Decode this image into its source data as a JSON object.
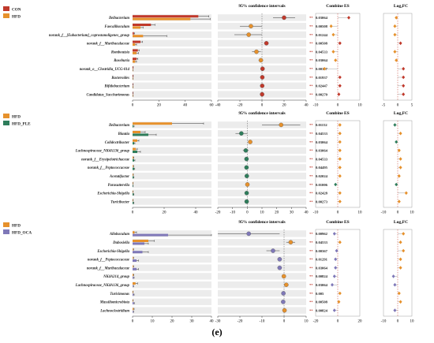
{
  "figure": {
    "caption": "(e)"
  },
  "chart_data": [
    {
      "type": "bar",
      "legend": [
        {
          "name": "CON",
          "color": "#c0392b"
        },
        {
          "name": "HFD",
          "color": "#e6912c"
        }
      ],
      "headers": {
        "ci": "95% confidence intervals",
        "es": "Combine ES",
        "fc": "Log₂FC"
      },
      "categories": [
        "Ileibacterium",
        "Faecalibaculum",
        "norank_f__[Eubacterium]_coprostanoligenes_group",
        "norank_f__Muribaculaceae",
        "Romboutsia",
        "Roseburia",
        "norank_o__Clostridia_UCG-014",
        "Bacteroides",
        "Bifidobacterium",
        "Candidatus_Saccharimonas"
      ],
      "series": [
        {
          "name": "CON",
          "values": [
            50,
            14,
            1,
            6,
            4,
            3,
            0.3,
            0.3,
            0.2,
            0.2
          ],
          "err": [
            8,
            3,
            0.5,
            1.5,
            1,
            1,
            0.2,
            0.2,
            0.1,
            0.1
          ]
        },
        {
          "name": "HFD",
          "values": [
            44,
            6,
            8,
            2,
            3,
            2,
            0.1,
            0.1,
            0.1,
            0.1
          ],
          "err": [
            15,
            2,
            18,
            1,
            1.5,
            1,
            0.1,
            0.1,
            0.1,
            0.1
          ]
        }
      ],
      "bar_xticks": [
        "0",
        "20",
        "40",
        "60"
      ],
      "bar_xlim": [
        0,
        60
      ],
      "ci": {
        "estimate": [
          20,
          -10,
          -12,
          4,
          -5,
          -1,
          0.5,
          0.3,
          0.2,
          0.1
        ],
        "low": [
          10,
          -20,
          -25,
          2,
          -9,
          -3,
          0,
          0,
          0,
          0
        ],
        "high": [
          30,
          0,
          0,
          6,
          -1,
          1,
          1,
          0.6,
          0.4,
          0.2
        ],
        "color": [
          "#c0392b",
          "#e6912c",
          "#e6912c",
          "#c0392b",
          "#e6912c",
          "#e6912c",
          "#c0392b",
          "#c0392b",
          "#c0392b",
          "#c0392b"
        ],
        "xlim": [
          -40,
          40
        ],
        "xticks": [
          "-40",
          "-20",
          "0",
          "20",
          "40"
        ]
      },
      "pvalues": [
        "0.03064",
        "0.00508",
        "0.01244",
        "0.00508",
        "0.04533",
        "0.03064",
        "0.00367",
        "0.01937",
        "0.02447",
        "0.00270"
      ],
      "es": {
        "values": [
          5,
          -3,
          -2,
          1,
          -2,
          -1,
          -6,
          1,
          1,
          0.5
        ],
        "xlim": [
          -10,
          10
        ],
        "xticks": [
          "-10",
          "0",
          "10"
        ]
      },
      "fc": {
        "values": [
          -0.5,
          -1,
          -1,
          1,
          -1,
          -0.5,
          2,
          2,
          2,
          2
        ],
        "xlim": [
          -5,
          5
        ],
        "xticks": [
          "-5",
          "0",
          "5"
        ]
      }
    },
    {
      "type": "bar",
      "legend": [
        {
          "name": "HFD",
          "color": "#e6912c"
        },
        {
          "name": "HFD_PLE",
          "color": "#2e7d5b"
        }
      ],
      "headers": {
        "ci": "95% confidence intervals",
        "es": "Combine ES",
        "fc": "Log₂FC"
      },
      "categories": [
        "Ileibacterium",
        "Blautia",
        "Colidextribacter",
        "Lachnospiraceae_NK4A136_group",
        "norank_f__Erysipelotrichaceae",
        "norank_f__Peptococcaceae",
        "Acetatifactor",
        "Parasutterella",
        "Escherichia-Shigella",
        "Turicibacter"
      ],
      "series": [
        {
          "name": "HFD",
          "values": [
            25,
            5,
            3,
            2,
            0.5,
            0.4,
            0.3,
            0.2,
            0.2,
            0.2
          ],
          "err": [
            20,
            3,
            1,
            1,
            0.3,
            0.3,
            0.2,
            0.1,
            0.1,
            0.1
          ]
        },
        {
          "name": "HFD_PLE",
          "values": [
            0.5,
            10,
            1,
            3,
            1,
            1,
            0.6,
            0.1,
            0.6,
            0.6
          ],
          "err": [
            0.5,
            5,
            0.5,
            2,
            0.5,
            0.4,
            0.3,
            0.1,
            0.3,
            0.3
          ]
        }
      ],
      "bar_xticks": [
        "0",
        "20",
        "40"
      ],
      "bar_xlim": [
        0,
        50
      ],
      "ci": {
        "estimate": [
          23,
          -4,
          2,
          -1,
          -0.5,
          -0.5,
          -0.3,
          0.1,
          -0.4,
          -0.4
        ],
        "low": [
          10,
          -8,
          1,
          -3,
          -1,
          -1,
          -0.6,
          0,
          -0.8,
          -0.8
        ],
        "high": [
          36,
          0,
          3,
          1,
          0,
          0,
          0,
          0.2,
          0,
          0
        ],
        "color": [
          "#e6912c",
          "#2e7d5b",
          "#e6912c",
          "#2e7d5b",
          "#2e7d5b",
          "#2e7d5b",
          "#2e7d5b",
          "#e6912c",
          "#2e7d5b",
          "#2e7d5b"
        ],
        "xlim": [
          -20,
          40
        ],
        "xticks": [
          "-20",
          "-10",
          "0",
          "10",
          "20",
          "30",
          "40"
        ]
      },
      "pvalues": [
        "0.01152",
        "0.04533",
        "0.03064",
        "0.03064",
        "0.04533",
        "0.04495",
        "0.02024",
        "0.01006",
        "0.02428",
        "0.00273"
      ],
      "es": {
        "values": [
          1,
          1,
          1,
          1,
          1,
          1,
          1,
          -1,
          1,
          1
        ],
        "xlim": [
          -10,
          10
        ],
        "xticks": [
          "-10",
          "0",
          "10"
        ]
      },
      "fc": {
        "values": [
          -2,
          2,
          -1,
          1,
          2,
          2,
          1,
          -1,
          6,
          1
        ],
        "xlim": [
          -10,
          10
        ],
        "xticks": [
          "-10",
          "0",
          "10"
        ]
      }
    },
    {
      "type": "bar",
      "legend": [
        {
          "name": "HFD",
          "color": "#e6912c"
        },
        {
          "name": "HFD_OCA",
          "color": "#7f78b8"
        }
      ],
      "headers": {
        "ci": "95% confidence intervals",
        "es": "Combine ES",
        "fc": "Log₂FC"
      },
      "categories": [
        "Allobaculum",
        "Dubosiella",
        "Escherichia-Shigella",
        "norank_f__Peptococcaceae",
        "norank_f__Muribaculaceae",
        "NK4A214_group",
        "Lachnospiraceae_NK4A136_group",
        "Turicimonas",
        "Massiliomicrobiota",
        "Lachnoclostridium"
      ],
      "series": [
        {
          "name": "HFD",
          "values": [
            1,
            8,
            0.3,
            0.3,
            0.3,
            0.4,
            1.5,
            0.2,
            0.2,
            0.5
          ],
          "err": [
            1,
            3,
            0.2,
            0.2,
            0.2,
            0.3,
            1,
            0.1,
            0.1,
            0.3
          ]
        },
        {
          "name": "HFD_OCA",
          "values": [
            18,
            6,
            5,
            2,
            2,
            0.5,
            0.3,
            0.5,
            0.6,
            0.3
          ],
          "err": [
            25,
            2,
            3,
            1,
            1,
            0.3,
            0.2,
            0.3,
            0.3,
            0.2
          ]
        }
      ],
      "bar_xticks": [
        "0",
        "10",
        "20",
        "30",
        "40"
      ],
      "bar_xlim": [
        0,
        40
      ],
      "ci": {
        "estimate": [
          -16,
          3,
          -5,
          -2,
          -2,
          -0.1,
          1,
          -0.3,
          -0.4,
          0.2
        ],
        "low": [
          -30,
          1,
          -8,
          -3,
          -3,
          -0.3,
          0.2,
          -0.6,
          -0.7,
          0
        ],
        "high": [
          -2,
          5,
          -2,
          -1,
          -1,
          0.1,
          2,
          0,
          -0.1,
          0.4
        ],
        "color": [
          "#7f78b8",
          "#e6912c",
          "#7f78b8",
          "#7f78b8",
          "#7f78b8",
          "#e6912c",
          "#e6912c",
          "#7f78b8",
          "#7f78b8",
          "#e6912c"
        ],
        "xlim": [
          -30,
          10
        ],
        "xticks": [
          "-30",
          "-20",
          "-10",
          "0",
          "10"
        ]
      },
      "pvalues": [
        "0.00962",
        "0.04533",
        "0.00367",
        "0.01291",
        "0.03064",
        "0.00824",
        "0.03064",
        "0.005",
        "0.00508",
        "0.00824"
      ],
      "es": {
        "values": [
          -3,
          2,
          -1,
          -2,
          -2,
          -3,
          -5,
          2,
          1,
          -3
        ],
        "xlim": [
          -20,
          20
        ],
        "xticks": [
          "-20",
          "0",
          "20"
        ]
      },
      "fc": {
        "values": [
          4,
          2,
          4,
          2,
          2,
          -3,
          -2,
          1,
          2,
          -2
        ],
        "xlim": [
          -10,
          10
        ],
        "xticks": [
          "-10",
          "0",
          "10"
        ]
      }
    }
  ]
}
